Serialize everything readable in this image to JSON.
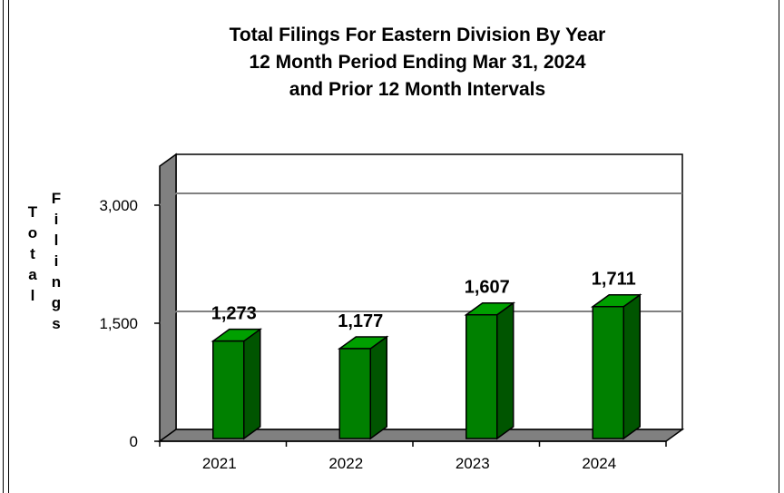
{
  "chart_data": {
    "type": "bar",
    "title_lines": [
      "Total Filings For Eastern Division By Year",
      "12 Month Period Ending Mar 31, 2024",
      "and Prior 12 Month Intervals"
    ],
    "ylabel_words": [
      "Total",
      "Filings"
    ],
    "xlabel": "",
    "categories": [
      "2021",
      "2022",
      "2023",
      "2024"
    ],
    "values": [
      1273,
      1177,
      1607,
      1711
    ],
    "value_labels": [
      "1,273",
      "1,177",
      "1,607",
      "1,711"
    ],
    "yticks": [
      0,
      1500,
      3000
    ],
    "ytick_labels": [
      "0",
      "1,500",
      "3,000"
    ],
    "ylim": [
      0,
      3000
    ],
    "grid": true,
    "style": "3d-bar",
    "colors": {
      "bar_front": "#008000",
      "bar_side": "#005500",
      "bar_top": "#00a000",
      "wall": "#808080",
      "gridline": "#808080"
    }
  }
}
